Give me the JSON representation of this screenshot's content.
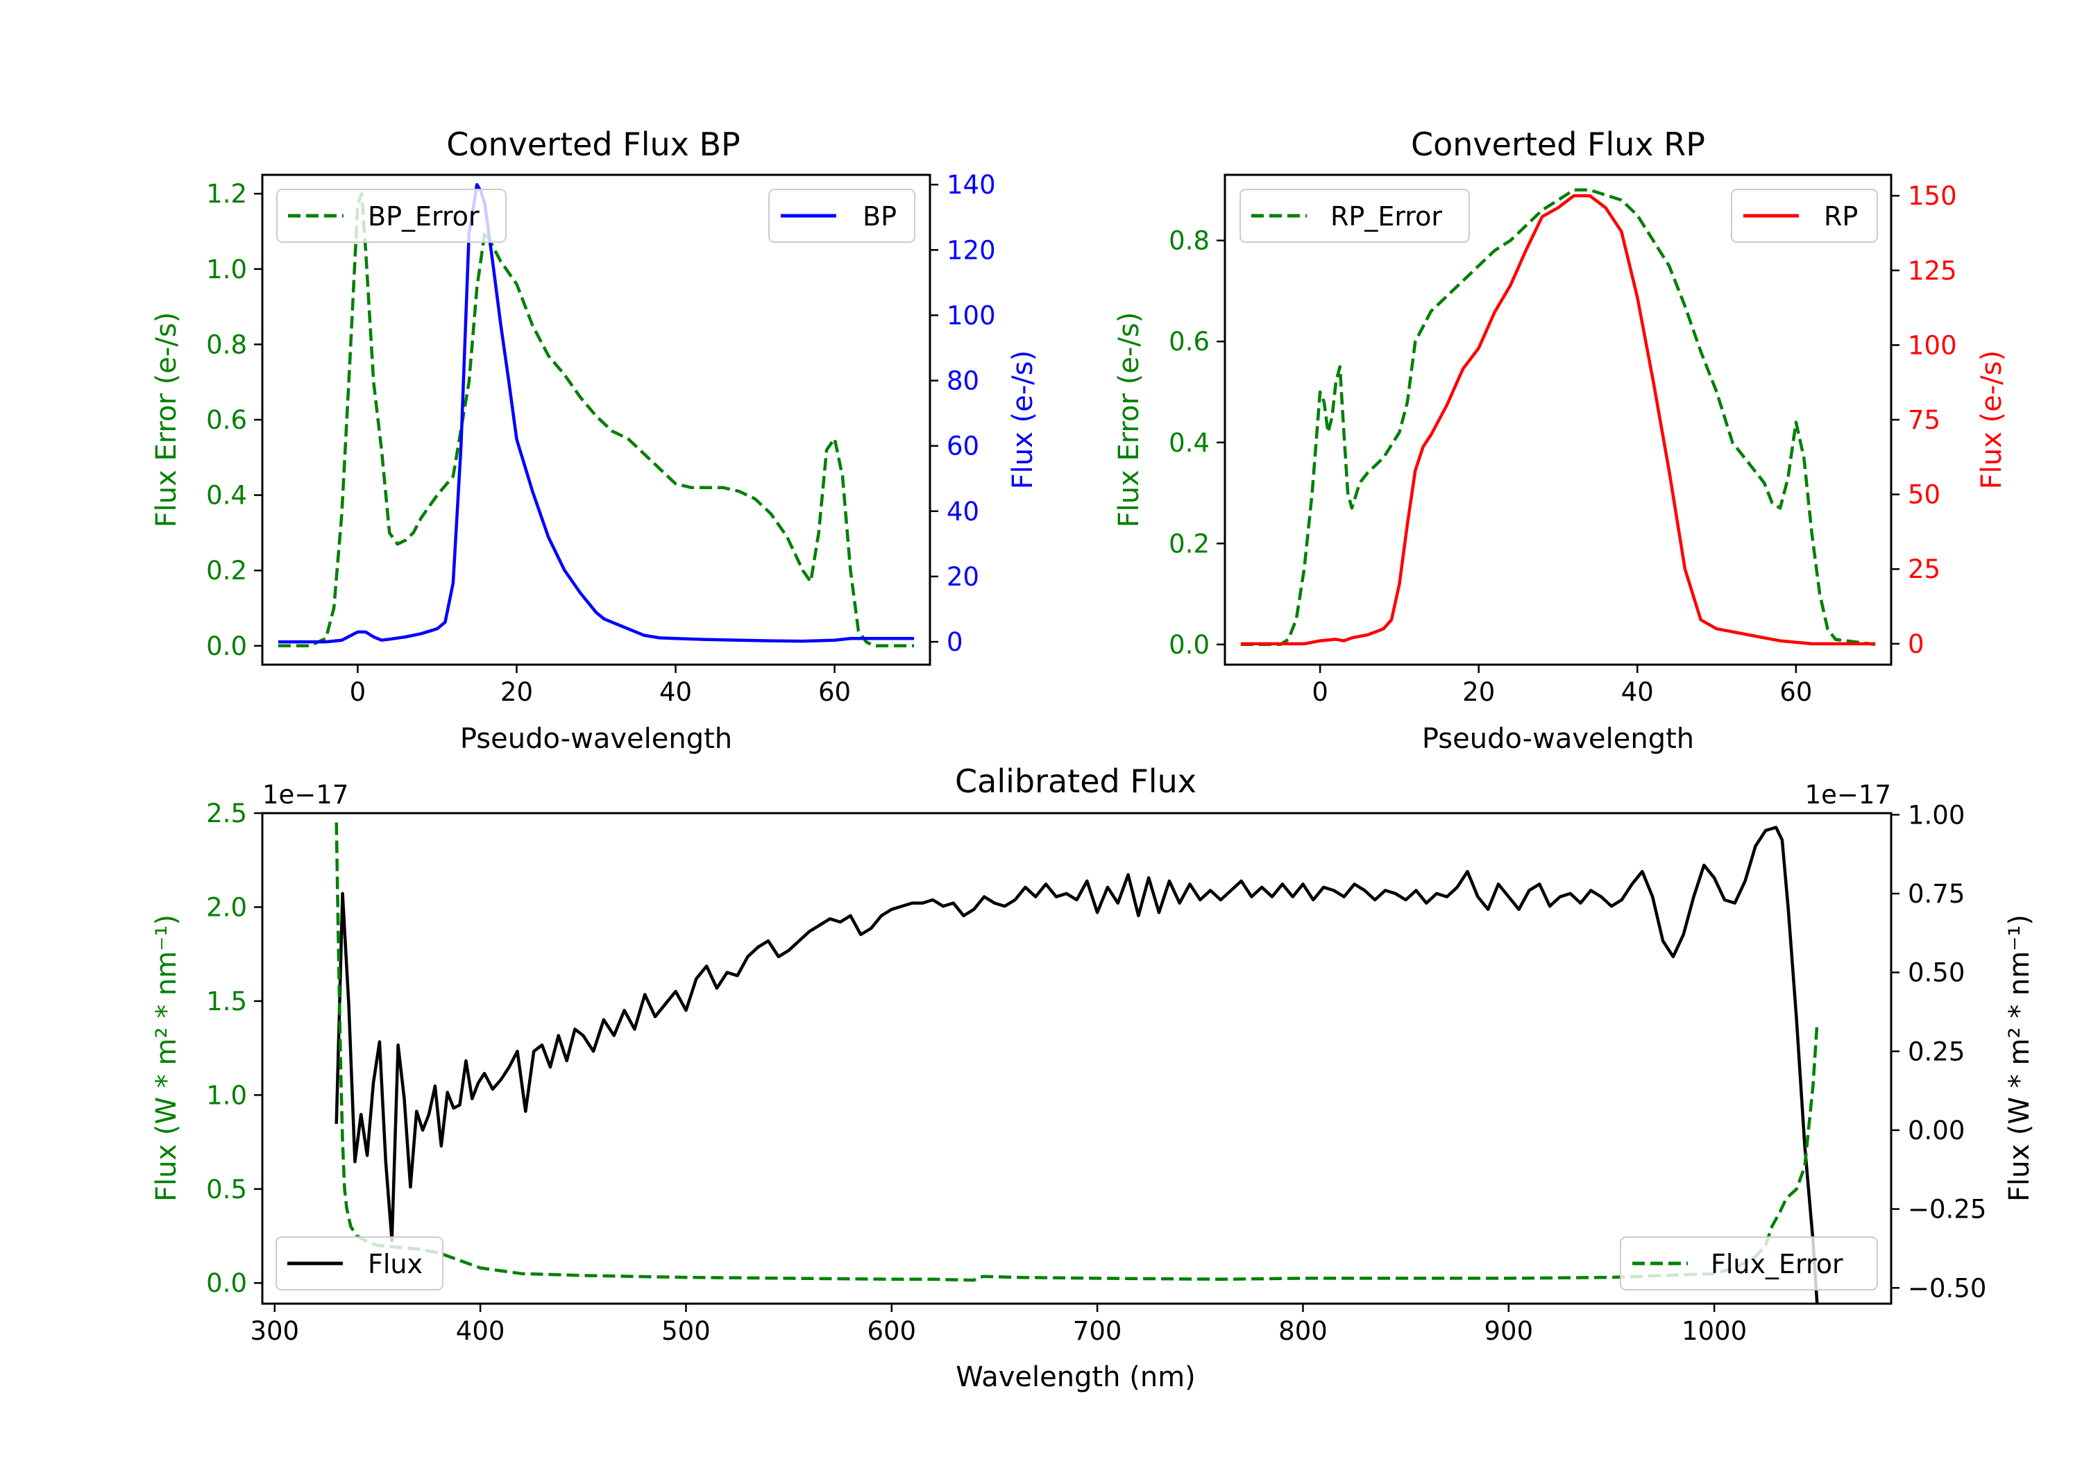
{
  "colors": {
    "error": "#008000",
    "bp": "#0000ff",
    "rp": "#ff0000",
    "flux": "#000000"
  },
  "chart_data": [
    {
      "id": "bp",
      "type": "line",
      "title": "Converted Flux BP",
      "xlabel": "Pseudo-wavelength",
      "ylabel_left": "Flux Error (e-/s)",
      "ylabel_right": "Flux (e-/s)",
      "xlim": [
        -12,
        72
      ],
      "ylim_left": [
        -0.05,
        1.25
      ],
      "ylim_right": [
        -7,
        143
      ],
      "xticks": [
        0,
        20,
        40,
        60
      ],
      "yticks_left": [
        0.0,
        0.2,
        0.4,
        0.6,
        0.8,
        1.0,
        1.2
      ],
      "yticks_left_labels": [
        "0.0",
        "0.2",
        "0.4",
        "0.6",
        "0.8",
        "1.0",
        "1.2"
      ],
      "yticks_right": [
        0,
        20,
        40,
        60,
        80,
        100,
        120,
        140
      ],
      "yticks_right_labels": [
        "0",
        "20",
        "40",
        "60",
        "80",
        "100",
        "120",
        "140"
      ],
      "legend_left": {
        "label": "BP_Error",
        "position": "upper left"
      },
      "legend_right": {
        "label": "BP",
        "position": "upper right"
      },
      "series": [
        {
          "name": "BP_Error",
          "axis": "left",
          "style": "dashed",
          "color": "#008000",
          "x": [
            -10,
            -6,
            -4,
            -3,
            -2,
            -1,
            0,
            0.5,
            1,
            2,
            3,
            4,
            5,
            6,
            7,
            8,
            10,
            12,
            14,
            15,
            16,
            18,
            20,
            22,
            24,
            26,
            28,
            30,
            32,
            34,
            36,
            38,
            40,
            42,
            44,
            46,
            48,
            50,
            52,
            54,
            56,
            57,
            58,
            59,
            60,
            61,
            62,
            63,
            64,
            65,
            66,
            70
          ],
          "y": [
            0.0,
            0.0,
            0.02,
            0.1,
            0.35,
            0.75,
            1.17,
            1.2,
            1.05,
            0.7,
            0.52,
            0.3,
            0.27,
            0.28,
            0.3,
            0.34,
            0.4,
            0.45,
            0.7,
            0.95,
            1.1,
            1.02,
            0.96,
            0.85,
            0.77,
            0.72,
            0.66,
            0.61,
            0.57,
            0.55,
            0.51,
            0.47,
            0.43,
            0.42,
            0.42,
            0.42,
            0.41,
            0.39,
            0.35,
            0.29,
            0.2,
            0.17,
            0.3,
            0.52,
            0.55,
            0.45,
            0.2,
            0.04,
            0.01,
            0.0,
            0.0,
            0.0
          ]
        },
        {
          "name": "BP",
          "axis": "right",
          "style": "solid",
          "color": "#0000ff",
          "x": [
            -10,
            -6,
            -4,
            -2,
            0,
            1,
            2,
            3,
            4,
            6,
            8,
            10,
            11,
            12,
            13,
            14,
            15,
            15.5,
            16,
            17,
            18,
            19,
            20,
            22,
            24,
            26,
            28,
            30,
            31,
            32,
            34,
            36,
            38,
            40,
            44,
            48,
            52,
            56,
            60,
            62,
            64,
            66,
            70
          ],
          "y": [
            0,
            0,
            0,
            0.5,
            3,
            3,
            1.5,
            0.5,
            0.8,
            1.5,
            2.5,
            4,
            6,
            18,
            60,
            125,
            140,
            138,
            134,
            116,
            97,
            80,
            62,
            46,
            32,
            22,
            15,
            9,
            7,
            6,
            4,
            2,
            1.2,
            1,
            0.7,
            0.5,
            0.3,
            0.2,
            0.5,
            1,
            1,
            1,
            1
          ]
        }
      ]
    },
    {
      "id": "rp",
      "type": "line",
      "title": "Converted Flux RP",
      "xlabel": "Pseudo-wavelength",
      "ylabel_left": "Flux Error (e-/s)",
      "ylabel_right": "Flux (e-/s)",
      "xlim": [
        -12,
        72
      ],
      "ylim_left": [
        -0.04,
        0.93
      ],
      "ylim_right": [
        -7,
        157
      ],
      "xticks": [
        0,
        20,
        40,
        60
      ],
      "yticks_left": [
        0.0,
        0.2,
        0.4,
        0.6,
        0.8
      ],
      "yticks_left_labels": [
        "0.0",
        "0.2",
        "0.4",
        "0.6",
        "0.8"
      ],
      "yticks_right": [
        0,
        25,
        50,
        75,
        100,
        125,
        150
      ],
      "yticks_right_labels": [
        "0",
        "25",
        "50",
        "75",
        "100",
        "125",
        "150"
      ],
      "legend_left": {
        "label": "RP_Error",
        "position": "upper left"
      },
      "legend_right": {
        "label": "RP",
        "position": "upper right"
      },
      "series": [
        {
          "name": "RP_Error",
          "axis": "left",
          "style": "dashed",
          "color": "#008000",
          "x": [
            -10,
            -5,
            -4,
            -3,
            -2,
            -1,
            0,
            0.5,
            1,
            1.5,
            2,
            2.5,
            3,
            3.5,
            4,
            5,
            6,
            8,
            10,
            11,
            12,
            14,
            16,
            18,
            20,
            22,
            24,
            26,
            28,
            30,
            32,
            34,
            36,
            38,
            40,
            42,
            44,
            46,
            48,
            50,
            52,
            54,
            55,
            56,
            57,
            58,
            59,
            60,
            61,
            62,
            63,
            64,
            65,
            70
          ],
          "y": [
            0.0,
            0.0,
            0.01,
            0.05,
            0.15,
            0.3,
            0.5,
            0.48,
            0.42,
            0.45,
            0.52,
            0.55,
            0.42,
            0.3,
            0.27,
            0.32,
            0.34,
            0.37,
            0.42,
            0.48,
            0.6,
            0.66,
            0.69,
            0.72,
            0.75,
            0.78,
            0.8,
            0.83,
            0.86,
            0.88,
            0.9,
            0.9,
            0.89,
            0.88,
            0.85,
            0.8,
            0.75,
            0.67,
            0.58,
            0.5,
            0.4,
            0.36,
            0.34,
            0.32,
            0.28,
            0.27,
            0.33,
            0.44,
            0.37,
            0.22,
            0.1,
            0.03,
            0.01,
            0.0
          ]
        },
        {
          "name": "RP",
          "axis": "right",
          "style": "solid",
          "color": "#ff0000",
          "x": [
            -10,
            -2,
            0,
            2,
            3,
            4,
            6,
            8,
            9,
            10,
            11,
            12,
            13,
            14,
            16,
            18,
            20,
            22,
            24,
            26,
            28,
            30,
            32,
            33,
            34,
            35,
            36,
            37,
            38,
            40,
            42,
            44,
            46,
            48,
            50,
            52,
            54,
            56,
            58,
            60,
            62,
            64,
            66,
            70
          ],
          "y": [
            0,
            0,
            1,
            1.5,
            1,
            2,
            3,
            5,
            8,
            20,
            40,
            58,
            66,
            70,
            80,
            92,
            99,
            111,
            120,
            132,
            143,
            146,
            150,
            150,
            150,
            148,
            146,
            142,
            138,
            116,
            88,
            58,
            25,
            8,
            5,
            4,
            3,
            2,
            1,
            0.5,
            0,
            0,
            0,
            0
          ]
        }
      ]
    },
    {
      "id": "calibrated",
      "type": "line",
      "title": "Calibrated Flux",
      "xlabel": "Wavelength (nm)",
      "ylabel_left": "Flux (W * m² * nm⁻¹)",
      "ylabel_right": "Flux (W * m² * nm⁻¹)",
      "offset_left": "1e−17",
      "offset_right": "1e−17",
      "xlim": [
        294,
        1086
      ],
      "ylim_left": [
        -0.11,
        2.5
      ],
      "ylim_right": [
        -0.55,
        1.005
      ],
      "xticks": [
        300,
        400,
        500,
        600,
        700,
        800,
        900,
        1000
      ],
      "yticks_left": [
        0.0,
        0.5,
        1.0,
        1.5,
        2.0,
        2.5
      ],
      "yticks_left_labels": [
        "0.0",
        "0.5",
        "1.0",
        "1.5",
        "2.0",
        "2.5"
      ],
      "yticks_right": [
        -0.5,
        -0.25,
        0.0,
        0.25,
        0.5,
        0.75,
        1.0
      ],
      "yticks_right_labels": [
        "−0.50",
        "−0.25",
        "0.00",
        "0.25",
        "0.50",
        "0.75",
        "1.00"
      ],
      "legend_left": {
        "label": "Flux",
        "position": "lower left"
      },
      "legend_right": {
        "label": "Flux_Error",
        "position": "lower right"
      },
      "series": [
        {
          "name": "Flux",
          "axis": "right",
          "style": "solid",
          "color": "#000000",
          "x": [
            330,
            333,
            336,
            339,
            342,
            345,
            348,
            351,
            354,
            357,
            360,
            363,
            366,
            369,
            372,
            375,
            378,
            381,
            384,
            387,
            390,
            393,
            396,
            399,
            402,
            406,
            410,
            414,
            418,
            422,
            426,
            430,
            434,
            438,
            442,
            446,
            450,
            455,
            460,
            465,
            470,
            475,
            480,
            485,
            490,
            495,
            500,
            505,
            510,
            515,
            520,
            525,
            530,
            535,
            540,
            545,
            550,
            555,
            560,
            565,
            570,
            575,
            580,
            585,
            590,
            595,
            600,
            605,
            610,
            615,
            620,
            625,
            630,
            635,
            640,
            645,
            650,
            655,
            660,
            665,
            670,
            675,
            680,
            685,
            690,
            695,
            700,
            705,
            710,
            715,
            720,
            725,
            730,
            735,
            740,
            745,
            750,
            755,
            760,
            765,
            770,
            775,
            780,
            785,
            790,
            795,
            800,
            805,
            810,
            815,
            820,
            825,
            830,
            835,
            840,
            845,
            850,
            855,
            860,
            865,
            870,
            875,
            880,
            885,
            890,
            895,
            900,
            905,
            910,
            915,
            920,
            925,
            930,
            935,
            940,
            945,
            950,
            955,
            960,
            965,
            970,
            975,
            980,
            985,
            990,
            995,
            1000,
            1005,
            1010,
            1015,
            1020,
            1025,
            1030,
            1033,
            1036,
            1040,
            1044,
            1048,
            1050
          ],
          "y": [
            0.02,
            0.75,
            0.4,
            -0.1,
            0.05,
            -0.08,
            0.15,
            0.28,
            -0.1,
            -0.35,
            0.27,
            0.1,
            -0.18,
            0.06,
            0.0,
            0.05,
            0.14,
            -0.05,
            0.12,
            0.07,
            0.08,
            0.22,
            0.1,
            0.15,
            0.18,
            0.13,
            0.16,
            0.2,
            0.25,
            0.06,
            0.25,
            0.27,
            0.2,
            0.3,
            0.22,
            0.32,
            0.3,
            0.25,
            0.35,
            0.3,
            0.38,
            0.32,
            0.43,
            0.36,
            0.4,
            0.44,
            0.38,
            0.48,
            0.52,
            0.45,
            0.5,
            0.49,
            0.55,
            0.58,
            0.6,
            0.55,
            0.57,
            0.6,
            0.63,
            0.65,
            0.67,
            0.66,
            0.68,
            0.62,
            0.64,
            0.68,
            0.7,
            0.71,
            0.72,
            0.72,
            0.73,
            0.71,
            0.72,
            0.68,
            0.7,
            0.74,
            0.72,
            0.71,
            0.73,
            0.77,
            0.74,
            0.78,
            0.74,
            0.75,
            0.73,
            0.79,
            0.69,
            0.77,
            0.72,
            0.81,
            0.68,
            0.8,
            0.69,
            0.79,
            0.72,
            0.78,
            0.73,
            0.76,
            0.73,
            0.76,
            0.79,
            0.74,
            0.77,
            0.74,
            0.78,
            0.74,
            0.78,
            0.73,
            0.77,
            0.76,
            0.74,
            0.78,
            0.76,
            0.73,
            0.76,
            0.75,
            0.73,
            0.76,
            0.72,
            0.75,
            0.74,
            0.77,
            0.82,
            0.74,
            0.7,
            0.78,
            0.74,
            0.7,
            0.76,
            0.78,
            0.71,
            0.74,
            0.75,
            0.72,
            0.76,
            0.74,
            0.71,
            0.73,
            0.78,
            0.82,
            0.74,
            0.6,
            0.55,
            0.62,
            0.74,
            0.84,
            0.8,
            0.73,
            0.72,
            0.79,
            0.9,
            0.95,
            0.96,
            0.92,
            0.7,
            0.35,
            -0.05,
            -0.35,
            -0.55
          ]
        },
        {
          "name": "Flux_Error",
          "axis": "left",
          "style": "dashed",
          "color": "#008000",
          "x": [
            330,
            331,
            332,
            333,
            334,
            335,
            337,
            340,
            345,
            350,
            360,
            370,
            380,
            390,
            400,
            420,
            450,
            500,
            550,
            600,
            620,
            640,
            642,
            645,
            660,
            700,
            760,
            800,
            900,
            950,
            1000,
            1010,
            1020,
            1025,
            1028,
            1032,
            1035,
            1040,
            1044,
            1048,
            1050
          ],
          "y": [
            2.45,
            1.8,
            1.2,
            0.75,
            0.5,
            0.4,
            0.3,
            0.25,
            0.22,
            0.2,
            0.19,
            0.18,
            0.16,
            0.12,
            0.08,
            0.05,
            0.04,
            0.03,
            0.025,
            0.02,
            0.02,
            0.015,
            0.03,
            0.035,
            0.03,
            0.025,
            0.02,
            0.025,
            0.025,
            0.03,
            0.05,
            0.08,
            0.14,
            0.2,
            0.3,
            0.38,
            0.45,
            0.5,
            0.62,
            1.05,
            1.38
          ]
        }
      ]
    }
  ]
}
